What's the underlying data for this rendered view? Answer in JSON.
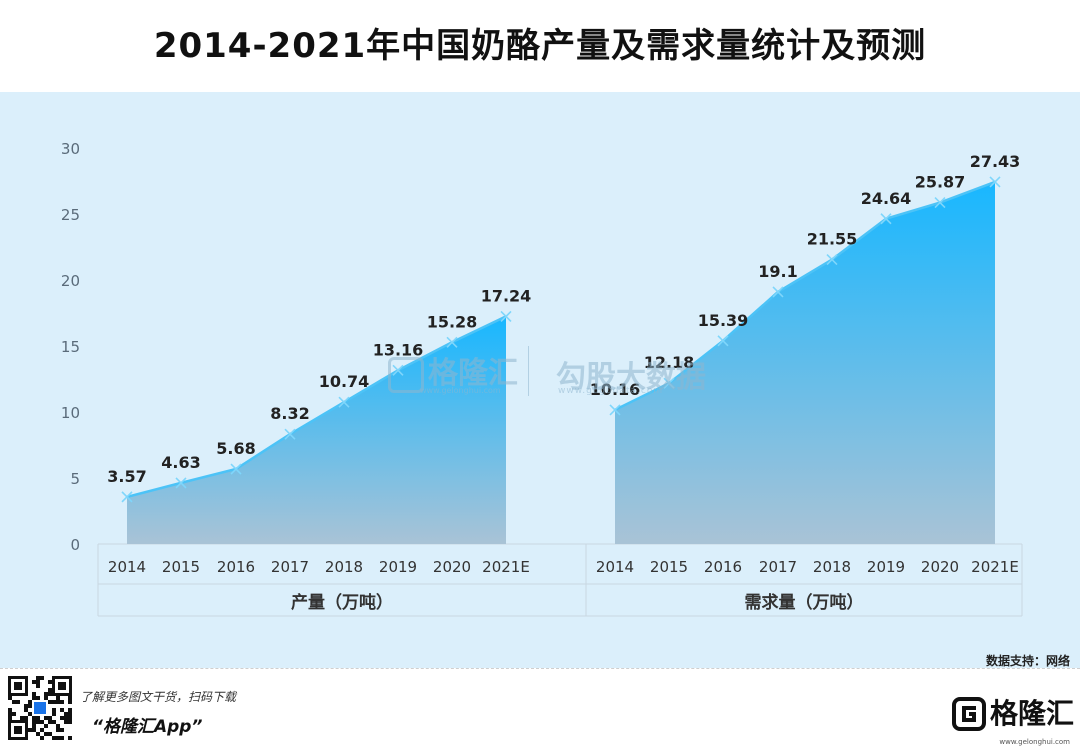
{
  "title": "2014-2021年中国奶酪产量及需求量统计及预测",
  "source_label": "数据支持：网络",
  "watermark": {
    "brand": "格隆汇",
    "brand_url": "www.gelonghui.com",
    "data": "勾股大数据",
    "data_url": "www.gogudata.com"
  },
  "footer": {
    "promo_line1": "了解更多图文干货，扫码下载",
    "promo_line2": "“格隆汇App”",
    "brand_name": "格隆汇",
    "brand_url": "www.gelonghui.com"
  },
  "colors": {
    "line": "#4cc3f7",
    "area_top": "#18b7ff",
    "area_bottom": "#a9c3d6",
    "background": "#dbeffb"
  },
  "chart_data": [
    {
      "type": "area",
      "title": "",
      "group_label": "产量（万吨）",
      "categories": [
        "2014",
        "2015",
        "2016",
        "2017",
        "2018",
        "2019",
        "2020",
        "2021E"
      ],
      "values": [
        3.57,
        4.63,
        5.68,
        8.32,
        10.74,
        13.16,
        15.28,
        17.24
      ],
      "data_labels": [
        "3.57",
        "4.63",
        "5.68",
        "8.32",
        "10.74",
        "13.16",
        "15.28",
        "17.24"
      ],
      "ylim": [
        0,
        30
      ],
      "yticks": [
        "0",
        "5",
        "10",
        "15",
        "20",
        "25",
        "30"
      ],
      "marker": "x",
      "grid": false
    },
    {
      "type": "area",
      "title": "",
      "group_label": "需求量（万吨）",
      "categories": [
        "2014",
        "2015",
        "2016",
        "2017",
        "2018",
        "2019",
        "2020",
        "2021E"
      ],
      "values": [
        10.16,
        12.18,
        15.39,
        19.1,
        21.55,
        24.64,
        25.87,
        27.43
      ],
      "data_labels": [
        "10.16",
        "12.18",
        "15.39",
        "19.1",
        "21.55",
        "24.64",
        "25.87",
        "27.43"
      ],
      "ylim": [
        0,
        30
      ],
      "marker": "x",
      "grid": false
    }
  ]
}
